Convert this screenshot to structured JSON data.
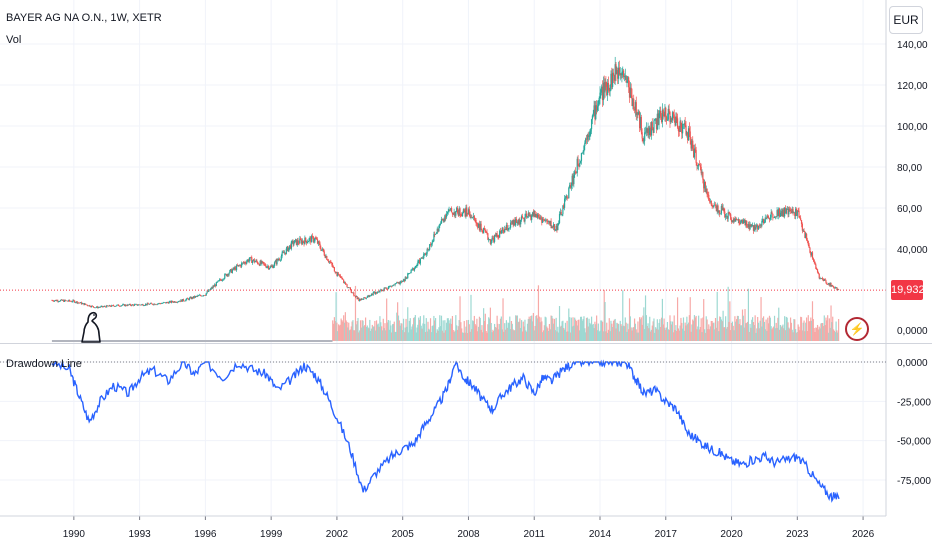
{
  "header": {
    "symbol": "BAYER AG NA O.N., 1W, XETR",
    "volume_label": "Vol",
    "indicator_label": "Drawdown Line",
    "currency_button": "EUR",
    "last_price": "19,932"
  },
  "icons": [
    "tradingview-logo-icon",
    "lightning-icon"
  ],
  "colors": {
    "up": "#26a69a",
    "down": "#ef5350",
    "drawdown_line": "#2962ff",
    "price_line": "#f23645",
    "grid": "#f0f3fa",
    "text": "#131722"
  },
  "chart_data": [
    {
      "type": "candlestick",
      "title": "BAYER AG NA O.N., 1W, XETR",
      "x_axis_labels": [
        "1990",
        "1993",
        "1996",
        "1999",
        "2002",
        "2005",
        "2008",
        "2011",
        "2014",
        "2017",
        "2020",
        "2023",
        "2026"
      ],
      "y_axis_labels": [
        "140,00",
        "120,00",
        "100,00",
        "80,00",
        "60,00",
        "40,000"
      ],
      "ylim": [
        0,
        145
      ],
      "x": [
        1989,
        1990,
        1991,
        1992,
        1993,
        1994,
        1995,
        1996,
        1997,
        1998,
        1999,
        2000,
        2001,
        2002,
        2003,
        2004,
        2005,
        2006,
        2007,
        2008,
        2009,
        2010,
        2011,
        2012,
        2013,
        2014,
        2015,
        2016,
        2017,
        2018,
        2019,
        2020,
        2021,
        2022,
        2023,
        2024,
        2024.9
      ],
      "close": [
        15,
        14.5,
        11.5,
        12.5,
        12.8,
        13.5,
        15,
        18,
        28,
        35,
        31,
        43,
        45,
        28,
        15,
        20,
        24,
        37,
        58,
        58,
        44,
        52,
        57,
        50,
        82,
        115,
        130,
        95,
        107,
        97,
        63,
        55,
        50,
        58,
        58,
        26,
        19.932
      ],
      "last_value": "19,932"
    },
    {
      "type": "bar",
      "name": "Vol",
      "y_axis_labels": [
        "0,0000"
      ]
    },
    {
      "type": "line",
      "name": "Drawdown Line",
      "y_axis_labels": [
        "0,0000",
        "-25,000",
        "-50,000",
        "-75,000"
      ],
      "ylim": [
        -90,
        0
      ],
      "x": [
        1989,
        1989.8,
        1990.2,
        1990.7,
        1991.2,
        1991.8,
        1992.5,
        1993,
        1993.6,
        1994.3,
        1995,
        1995.5,
        1996,
        1996.8,
        1997.5,
        1998.2,
        1998.8,
        1999.3,
        2000,
        2000.5,
        2001,
        2001.5,
        2002,
        2002.6,
        2003.2,
        2003.8,
        2004.5,
        2005,
        2005.5,
        2006,
        2006.5,
        2007,
        2007.4,
        2007.8,
        2008.2,
        2008.7,
        2009.1,
        2009.6,
        2010,
        2010.5,
        2011,
        2011.4,
        2011.8,
        2012.3,
        2012.8,
        2013.3,
        2013.8,
        2014.3,
        2014.8,
        2015.2,
        2015.6,
        2016,
        2016.5,
        2017,
        2017.5,
        2018,
        2018.5,
        2019,
        2019.5,
        2020,
        2020.5,
        2021,
        2021.5,
        2022,
        2022.5,
        2023,
        2023.5,
        2024,
        2024.5,
        2024.9
      ],
      "y": [
        0,
        -5,
        -20,
        -38,
        -25,
        -15,
        -20,
        -10,
        -5,
        -12,
        0,
        -8,
        0,
        -10,
        0,
        -5,
        -8,
        -18,
        -10,
        -2,
        -8,
        -20,
        -35,
        -55,
        -82,
        -70,
        -60,
        -55,
        -52,
        -40,
        -30,
        -18,
        0,
        -10,
        -15,
        -25,
        -30,
        -20,
        -15,
        -10,
        -20,
        -10,
        -12,
        -5,
        0,
        0,
        0,
        0,
        0,
        0,
        -10,
        -20,
        -18,
        -25,
        -30,
        -45,
        -50,
        -55,
        -58,
        -63,
        -65,
        -62,
        -60,
        -64,
        -62,
        -60,
        -68,
        -78,
        -85,
        -87
      ]
    }
  ]
}
